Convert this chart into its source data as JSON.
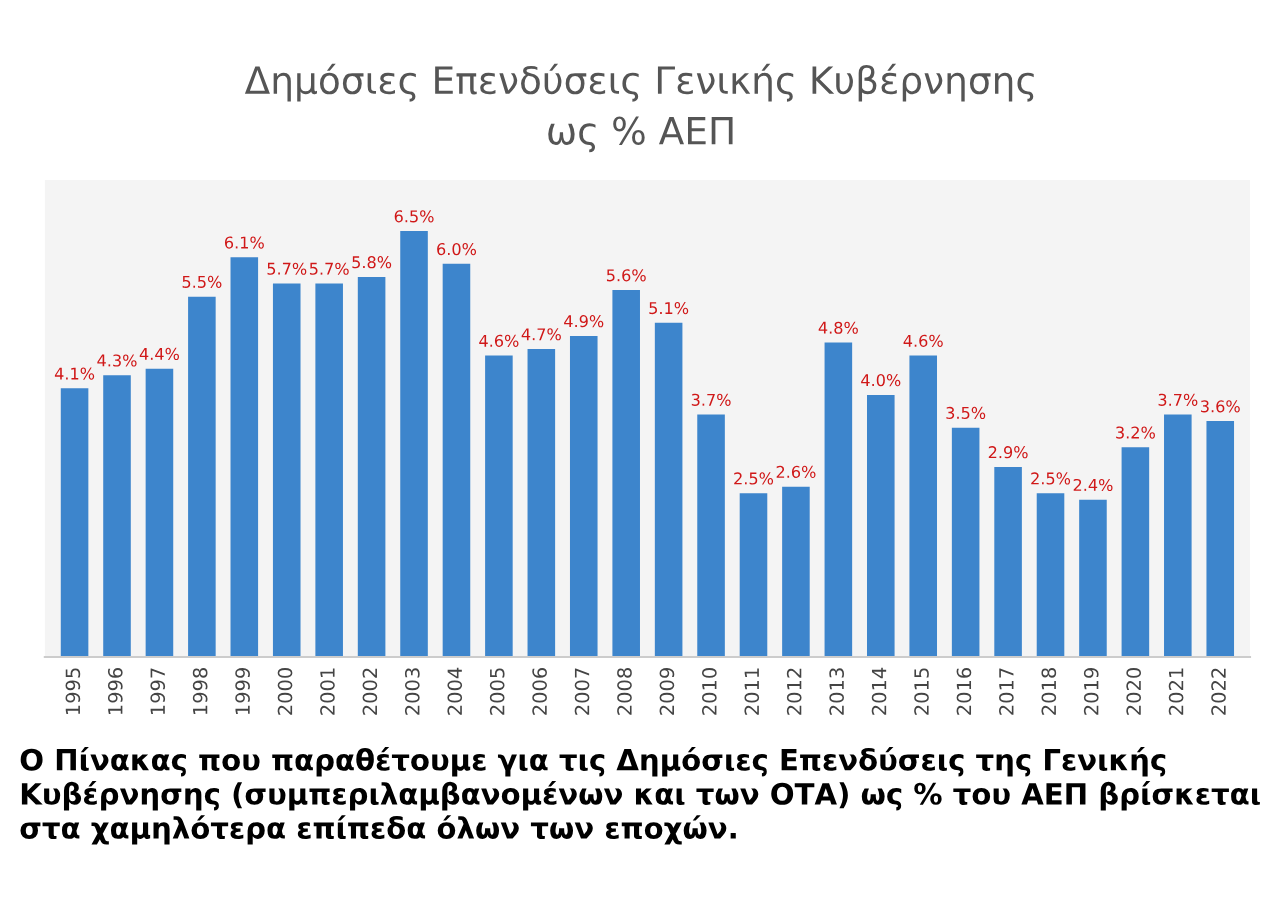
{
  "chart_data": {
    "type": "bar",
    "title": "Δημόσιες Επενδύσεις Γενικής Κυβέρνησης\nως % ΑΕΠ",
    "categories": [
      "1995",
      "1996",
      "1997",
      "1998",
      "1999",
      "2000",
      "2001",
      "2002",
      "2003",
      "2004",
      "2005",
      "2006",
      "2007",
      "2008",
      "2009",
      "2010",
      "2011",
      "2012",
      "2013",
      "2014",
      "2015",
      "2016",
      "2017",
      "2018",
      "2019",
      "2020",
      "2021",
      "2022"
    ],
    "values": [
      4.1,
      4.3,
      4.4,
      5.5,
      6.1,
      5.7,
      5.7,
      5.8,
      6.5,
      6.0,
      4.6,
      4.7,
      4.9,
      5.6,
      5.1,
      3.7,
      2.5,
      2.6,
      4.8,
      4.0,
      4.6,
      3.5,
      2.9,
      2.5,
      2.4,
      3.2,
      3.7,
      3.6
    ],
    "value_labels": [
      "4.1%",
      "4.3%",
      "4.4%",
      "5.5%",
      "6.1%",
      "5.7%",
      "5.7%",
      "5.8%",
      "6.5%",
      "6.0%",
      "4.6%",
      "4.7%",
      "4.9%",
      "5.6%",
      "5.1%",
      "3.7%",
      "2.5%",
      "2.6%",
      "4.8%",
      "4.0%",
      "4.6%",
      "3.5%",
      "2.9%",
      "2.5%",
      "2.4%",
      "3.2%",
      "3.7%",
      "3.6%"
    ],
    "color": "#3d85cc",
    "grid": false,
    "legend": false,
    "annotations": [
      "Ο Πίνακας που παραθέτουμε για τις Δημόσιες Επενδύσεις της Γενικής Κυβέρνησης (συμπεριλαμβανομένων και των ΟΤΑ) ως % του ΑΕΠ βρίσκεται στα χαμηλότερα επίπεδα όλων των εποχών."
    ]
  }
}
